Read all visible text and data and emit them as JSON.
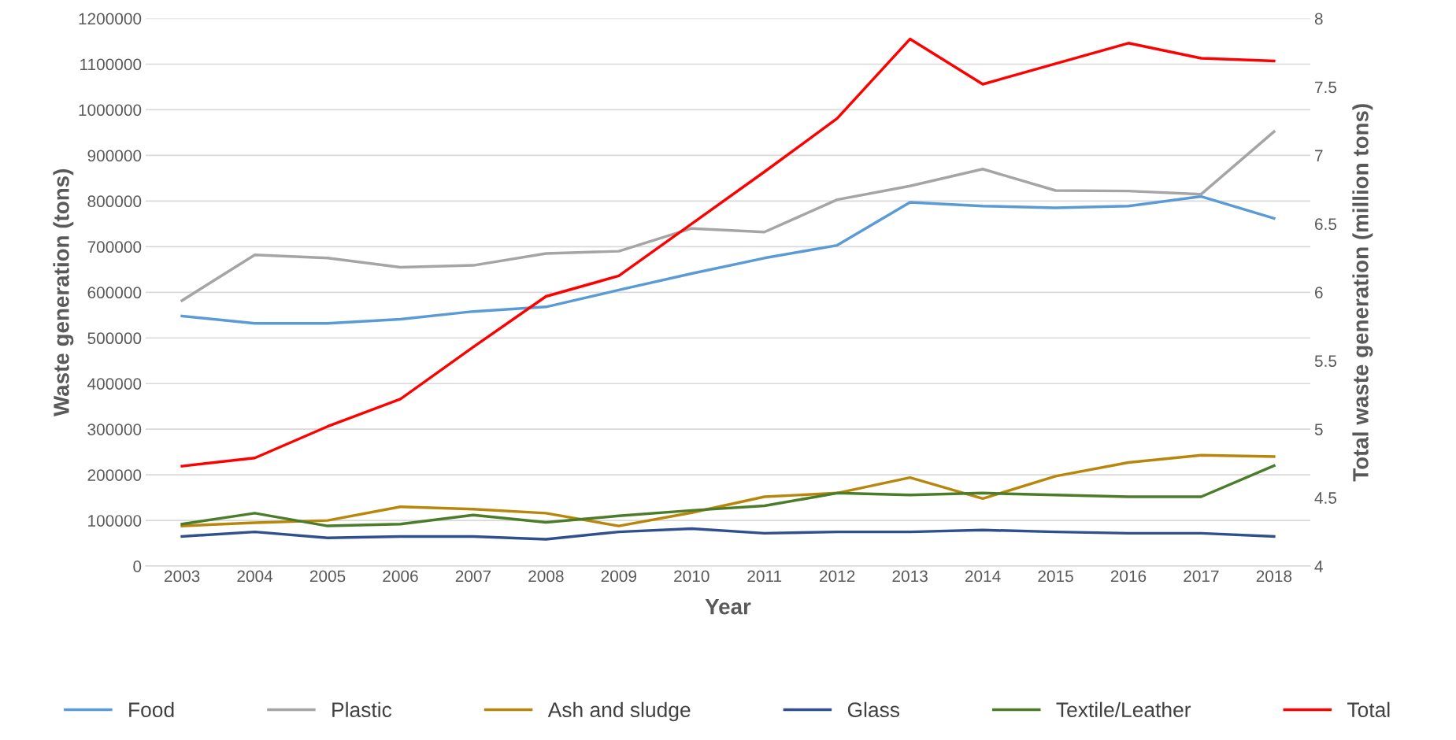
{
  "chart_data": {
    "type": "line",
    "xlabel": "Year",
    "ylabel": "Waste generation (tons)",
    "y2label": "Total waste generation (million tons)",
    "categories": [
      "2003",
      "2004",
      "2005",
      "2006",
      "2007",
      "2008",
      "2009",
      "2010",
      "2011",
      "2012",
      "2013",
      "2014",
      "2015",
      "2016",
      "2017",
      "2018"
    ],
    "ylim": [
      0,
      1200000
    ],
    "yticks": [
      0,
      100000,
      200000,
      300000,
      400000,
      500000,
      600000,
      700000,
      800000,
      900000,
      1000000,
      1100000,
      1200000
    ],
    "y2lim": [
      4,
      8
    ],
    "y2ticks": [
      4,
      4.5,
      5,
      5.5,
      6,
      6.5,
      7,
      7.5,
      8
    ],
    "grid": "y",
    "legend": "bottom",
    "marker": "none",
    "line_style": "solid",
    "series": [
      {
        "name": "Food",
        "color": "#5b9bd5",
        "values": [
          548000,
          532000,
          532000,
          541000,
          558000,
          568000,
          605000,
          641000,
          675000,
          703000,
          797000,
          789000,
          785000,
          789000,
          810000,
          762000
        ]
      },
      {
        "name": "Plastic",
        "color": "#a5a5a5",
        "values": [
          582000,
          682000,
          675000,
          655000,
          659000,
          685000,
          690000,
          740000,
          732000,
          803000,
          833000,
          870000,
          823000,
          822000,
          815000,
          952000
        ]
      },
      {
        "name": "Ash and sludge",
        "color": "#b8860b",
        "values": [
          88000,
          95000,
          100000,
          130000,
          125000,
          116000,
          88000,
          117000,
          152000,
          160000,
          194000,
          148000,
          197000,
          227000,
          243000,
          240000
        ]
      },
      {
        "name": "Glass",
        "color": "#2f4f8f",
        "values": [
          65000,
          75000,
          62000,
          65000,
          65000,
          59000,
          75000,
          82000,
          72000,
          75000,
          75000,
          79000,
          75000,
          72000,
          72000,
          65000
        ]
      },
      {
        "name": "Textile/Leather",
        "color": "#4a7c2a",
        "values": [
          92000,
          116000,
          88000,
          92000,
          112000,
          96000,
          110000,
          122000,
          132000,
          160000,
          156000,
          160000,
          156000,
          152000,
          152000,
          220000
        ]
      },
      {
        "name": "Total",
        "color": "#ff0000",
        "axis": "y2",
        "values": [
          4.73,
          4.79,
          5.02,
          5.22,
          5.6,
          5.97,
          6.12,
          6.5,
          6.88,
          7.27,
          7.85,
          7.52,
          7.67,
          7.82,
          7.71,
          7.69
        ]
      }
    ]
  }
}
